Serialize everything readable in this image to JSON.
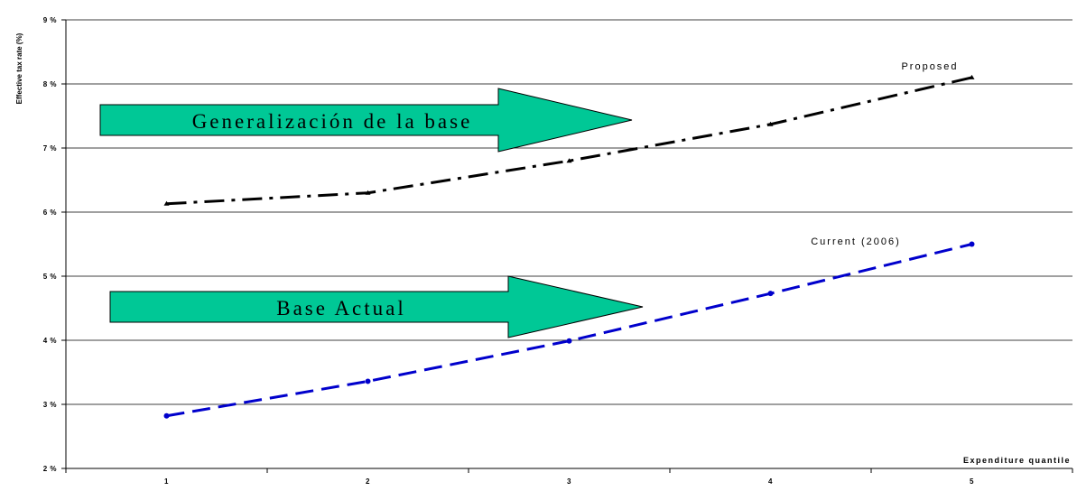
{
  "chart_data": {
    "type": "line",
    "x": [
      1,
      2,
      3,
      4,
      5
    ],
    "xlabel": "Expenditure quantile",
    "ylabel": "Effective tax rate (%)",
    "ylim": [
      2,
      9
    ],
    "yticks": [
      "2 %",
      "3 %",
      "4 %",
      "5 %",
      "6 %",
      "7 %",
      "8 %",
      "9 %"
    ],
    "xticks": [
      "1",
      "2",
      "3",
      "4",
      "5"
    ],
    "grid": "horizontal",
    "series": [
      {
        "name": "Proposed",
        "values": [
          6.13,
          6.3,
          6.8,
          7.37,
          8.1
        ],
        "color": "#000000",
        "style": "dash-dot",
        "marker": "triangle"
      },
      {
        "name": "Current (2006)",
        "values": [
          2.82,
          3.36,
          3.99,
          4.73,
          5.5
        ],
        "color": "#0000cc",
        "style": "dashed",
        "marker": "circle"
      }
    ],
    "annotations": [
      {
        "text": "Generalización de la base",
        "type": "arrow",
        "color": "#00c896"
      },
      {
        "text": "Base Actual",
        "type": "arrow",
        "color": "#00c896"
      }
    ]
  }
}
